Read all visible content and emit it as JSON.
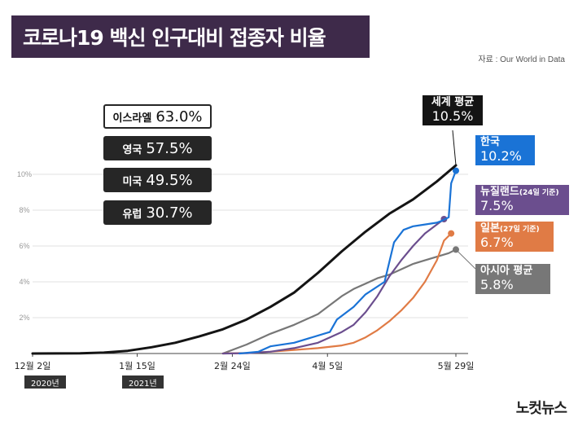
{
  "title": "코로나19 백신 인구대비 접종자 비율",
  "source": "자료 : Our World in Data",
  "brand": "노컷뉴스",
  "year_badges": [
    "2020년",
    "2021년"
  ],
  "colors": {
    "world": "#141414",
    "korea": "#1a73d6",
    "nz": "#6b4e8e",
    "japan": "#e07b45",
    "asia": "#777777",
    "grid": "#e2e2e2"
  },
  "country_stats": [
    {
      "name": "이스라엘",
      "value": "63.0%"
    },
    {
      "name": "영국",
      "value": "57.5%"
    },
    {
      "name": "미국",
      "value": "49.5%"
    },
    {
      "name": "유럽",
      "value": "30.7%"
    }
  ],
  "series_labels": {
    "world": {
      "name": "세계 평균",
      "value": "10.5%"
    },
    "korea": {
      "name": "한국",
      "value": "10.2%"
    },
    "nz": {
      "name": "뉴질랜드",
      "note": "(24일 기준)",
      "value": "7.5%"
    },
    "japan": {
      "name": "일본",
      "note": "(27일 기준)",
      "value": "6.7%"
    },
    "asia": {
      "name": "아시아 평균",
      "value": "5.8%"
    }
  },
  "chart_data": {
    "type": "line",
    "title": "코로나19 백신 인구대비 접종자 비율",
    "xlabel": "",
    "ylabel": "",
    "x_ticks": [
      {
        "day": 0,
        "label": "12월 2일"
      },
      {
        "day": 44,
        "label": "1월 15일"
      },
      {
        "day": 84,
        "label": "2월 24일"
      },
      {
        "day": 124,
        "label": "4월 5일"
      },
      {
        "day": 178,
        "label": "5월 29일"
      }
    ],
    "xlim": [
      0,
      178
    ],
    "ylim": [
      0,
      11
    ],
    "y_ticks": [
      {
        "value": 2,
        "label": "2%"
      },
      {
        "value": 4,
        "label": "4%"
      },
      {
        "value": 6,
        "label": "6%"
      },
      {
        "value": 8,
        "label": "8%"
      },
      {
        "value": 10,
        "label": "10%"
      }
    ],
    "series": [
      {
        "key": "world",
        "name": "세계 평균",
        "x": [
          0,
          20,
          30,
          40,
          50,
          60,
          70,
          80,
          90,
          100,
          110,
          120,
          130,
          140,
          150,
          160,
          170,
          178
        ],
        "y": [
          0,
          0.01,
          0.05,
          0.15,
          0.35,
          0.6,
          0.95,
          1.35,
          1.9,
          2.6,
          3.4,
          4.5,
          5.7,
          6.8,
          7.8,
          8.6,
          9.6,
          10.5
        ]
      },
      {
        "key": "korea",
        "name": "한국",
        "x": [
          87,
          95,
          100,
          110,
          125,
          128,
          135,
          140,
          148,
          152,
          156,
          160,
          170,
          172,
          175,
          176,
          178
        ],
        "y": [
          0,
          0.1,
          0.4,
          0.6,
          1.2,
          1.9,
          2.6,
          3.3,
          4.0,
          6.2,
          6.9,
          7.1,
          7.3,
          7.4,
          7.6,
          9.5,
          10.2
        ],
        "end_marker": true
      },
      {
        "key": "nz",
        "name": "뉴질랜드",
        "x": [
          80,
          90,
          100,
          110,
          120,
          125,
          130,
          135,
          140,
          145,
          150,
          155,
          160,
          165,
          170,
          173
        ],
        "y": [
          0,
          0.02,
          0.1,
          0.3,
          0.6,
          0.9,
          1.2,
          1.6,
          2.3,
          3.2,
          4.3,
          5.2,
          6.0,
          6.7,
          7.2,
          7.5
        ],
        "end_marker": true
      },
      {
        "key": "japan",
        "name": "일본",
        "x": [
          80,
          90,
          100,
          110,
          120,
          130,
          135,
          140,
          145,
          150,
          155,
          160,
          165,
          170,
          173,
          176
        ],
        "y": [
          0,
          0.03,
          0.1,
          0.2,
          0.3,
          0.45,
          0.6,
          0.9,
          1.3,
          1.8,
          2.4,
          3.1,
          4.0,
          5.2,
          6.3,
          6.7
        ],
        "end_marker": true
      },
      {
        "key": "asia",
        "name": "아시아 평균",
        "x": [
          80,
          90,
          100,
          110,
          120,
          130,
          135,
          140,
          145,
          150,
          155,
          160,
          165,
          170,
          175,
          178
        ],
        "y": [
          0,
          0.5,
          1.1,
          1.6,
          2.2,
          3.2,
          3.6,
          3.9,
          4.2,
          4.4,
          4.7,
          5.0,
          5.2,
          5.4,
          5.6,
          5.8
        ],
        "end_marker": true
      }
    ]
  }
}
